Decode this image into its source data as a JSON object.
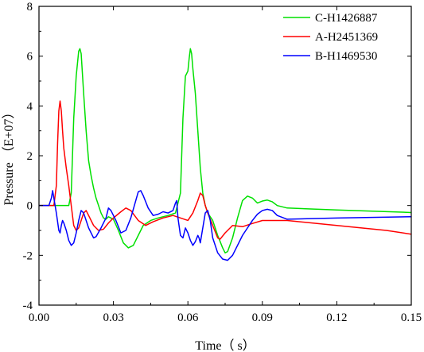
{
  "chart_data": {
    "type": "line",
    "xlabel": "Time（ s）",
    "ylabel": "Pressure （E+07）",
    "xlim": [
      0,
      0.15
    ],
    "ylim": [
      -4,
      8
    ],
    "xticks": [
      0.0,
      0.03,
      0.06,
      0.09,
      0.12,
      0.15
    ],
    "xtick_labels": [
      "0.00",
      "0.03",
      "0.06",
      "0.09",
      "0.12",
      "0.15"
    ],
    "yticks": [
      -4,
      -2,
      0,
      2,
      4,
      6,
      8
    ],
    "ytick_labels": [
      "-4",
      "-2",
      "0",
      "2",
      "4",
      "6",
      "8"
    ],
    "grid": false,
    "legend_position": "top-right",
    "series": [
      {
        "name": "C-H1426887",
        "color": "#00e000",
        "points": [
          [
            0.0,
            0.0
          ],
          [
            0.012,
            0.0
          ],
          [
            0.013,
            0.5
          ],
          [
            0.0135,
            2.0
          ],
          [
            0.014,
            3.5
          ],
          [
            0.015,
            5.2
          ],
          [
            0.016,
            6.2
          ],
          [
            0.0165,
            6.3
          ],
          [
            0.017,
            6.1
          ],
          [
            0.018,
            4.5
          ],
          [
            0.019,
            3.0
          ],
          [
            0.02,
            1.8
          ],
          [
            0.021,
            1.2
          ],
          [
            0.022,
            0.7
          ],
          [
            0.023,
            0.3
          ],
          [
            0.024,
            0.0
          ],
          [
            0.025,
            -0.3
          ],
          [
            0.026,
            -0.5
          ],
          [
            0.027,
            -0.55
          ],
          [
            0.028,
            -0.45
          ],
          [
            0.03,
            -0.55
          ],
          [
            0.032,
            -1.0
          ],
          [
            0.034,
            -1.5
          ],
          [
            0.036,
            -1.7
          ],
          [
            0.038,
            -1.6
          ],
          [
            0.04,
            -1.2
          ],
          [
            0.042,
            -0.8
          ],
          [
            0.045,
            -0.6
          ],
          [
            0.048,
            -0.5
          ],
          [
            0.052,
            -0.4
          ],
          [
            0.055,
            -0.3
          ],
          [
            0.057,
            0.5
          ],
          [
            0.058,
            3.5
          ],
          [
            0.059,
            5.2
          ],
          [
            0.06,
            5.4
          ],
          [
            0.0605,
            5.9
          ],
          [
            0.061,
            6.3
          ],
          [
            0.0615,
            6.1
          ],
          [
            0.062,
            5.5
          ],
          [
            0.063,
            4.5
          ],
          [
            0.064,
            3.0
          ],
          [
            0.065,
            1.5
          ],
          [
            0.066,
            0.5
          ],
          [
            0.067,
            0.0
          ],
          [
            0.068,
            -0.3
          ],
          [
            0.07,
            -0.6
          ],
          [
            0.072,
            -1.2
          ],
          [
            0.074,
            -1.7
          ],
          [
            0.075,
            -1.9
          ],
          [
            0.076,
            -1.85
          ],
          [
            0.078,
            -1.3
          ],
          [
            0.08,
            -0.5
          ],
          [
            0.082,
            0.2
          ],
          [
            0.084,
            0.38
          ],
          [
            0.086,
            0.3
          ],
          [
            0.088,
            0.1
          ],
          [
            0.09,
            0.18
          ],
          [
            0.092,
            0.22
          ],
          [
            0.094,
            0.15
          ],
          [
            0.096,
            0.0
          ],
          [
            0.1,
            -0.1
          ],
          [
            0.12,
            -0.18
          ],
          [
            0.15,
            -0.28
          ]
        ]
      },
      {
        "name": "A-H2451369",
        "color": "#ff0000",
        "points": [
          [
            0.0,
            0.0
          ],
          [
            0.006,
            0.0
          ],
          [
            0.007,
            0.8
          ],
          [
            0.0075,
            2.5
          ],
          [
            0.008,
            3.8
          ],
          [
            0.0085,
            4.2
          ],
          [
            0.009,
            3.8
          ],
          [
            0.0095,
            3.0
          ],
          [
            0.01,
            2.3
          ],
          [
            0.011,
            1.5
          ],
          [
            0.012,
            0.8
          ],
          [
            0.013,
            0.0
          ],
          [
            0.014,
            -0.8
          ],
          [
            0.015,
            -1.0
          ],
          [
            0.016,
            -0.9
          ],
          [
            0.017,
            -0.6
          ],
          [
            0.018,
            -0.3
          ],
          [
            0.019,
            -0.2
          ],
          [
            0.02,
            -0.4
          ],
          [
            0.022,
            -0.8
          ],
          [
            0.024,
            -1.0
          ],
          [
            0.026,
            -0.95
          ],
          [
            0.028,
            -0.7
          ],
          [
            0.03,
            -0.5
          ],
          [
            0.033,
            -0.25
          ],
          [
            0.035,
            -0.1
          ],
          [
            0.037,
            -0.2
          ],
          [
            0.04,
            -0.6
          ],
          [
            0.043,
            -0.8
          ],
          [
            0.046,
            -0.65
          ],
          [
            0.05,
            -0.5
          ],
          [
            0.054,
            -0.4
          ],
          [
            0.057,
            -0.5
          ],
          [
            0.06,
            -0.6
          ],
          [
            0.062,
            -0.3
          ],
          [
            0.064,
            0.2
          ],
          [
            0.065,
            0.5
          ],
          [
            0.066,
            0.4
          ],
          [
            0.067,
            0.0
          ],
          [
            0.068,
            -0.3
          ],
          [
            0.07,
            -0.8
          ],
          [
            0.072,
            -1.3
          ],
          [
            0.073,
            -1.35
          ],
          [
            0.075,
            -1.1
          ],
          [
            0.078,
            -0.8
          ],
          [
            0.082,
            -0.85
          ],
          [
            0.085,
            -0.75
          ],
          [
            0.09,
            -0.6
          ],
          [
            0.1,
            -0.6
          ],
          [
            0.11,
            -0.7
          ],
          [
            0.12,
            -0.8
          ],
          [
            0.13,
            -0.9
          ],
          [
            0.14,
            -1.0
          ],
          [
            0.15,
            -1.15
          ]
        ]
      },
      {
        "name": "B-H1469530",
        "color": "#0000ff",
        "points": [
          [
            0.0,
            0.0
          ],
          [
            0.004,
            0.0
          ],
          [
            0.005,
            0.3
          ],
          [
            0.0055,
            0.6
          ],
          [
            0.006,
            0.3
          ],
          [
            0.007,
            -0.3
          ],
          [
            0.008,
            -1.0
          ],
          [
            0.0085,
            -1.1
          ],
          [
            0.009,
            -0.8
          ],
          [
            0.0095,
            -0.6
          ],
          [
            0.01,
            -0.7
          ],
          [
            0.011,
            -1.0
          ],
          [
            0.012,
            -1.4
          ],
          [
            0.013,
            -1.6
          ],
          [
            0.014,
            -1.5
          ],
          [
            0.015,
            -1.1
          ],
          [
            0.016,
            -0.6
          ],
          [
            0.017,
            -0.2
          ],
          [
            0.018,
            -0.3
          ],
          [
            0.02,
            -0.9
          ],
          [
            0.022,
            -1.3
          ],
          [
            0.023,
            -1.25
          ],
          [
            0.025,
            -0.9
          ],
          [
            0.027,
            -0.5
          ],
          [
            0.028,
            -0.1
          ],
          [
            0.029,
            -0.2
          ],
          [
            0.031,
            -0.6
          ],
          [
            0.033,
            -1.1
          ],
          [
            0.035,
            -1.0
          ],
          [
            0.037,
            -0.5
          ],
          [
            0.039,
            0.2
          ],
          [
            0.04,
            0.55
          ],
          [
            0.041,
            0.6
          ],
          [
            0.042,
            0.4
          ],
          [
            0.044,
            -0.1
          ],
          [
            0.046,
            -0.4
          ],
          [
            0.048,
            -0.35
          ],
          [
            0.05,
            -0.25
          ],
          [
            0.052,
            -0.3
          ],
          [
            0.054,
            -0.2
          ],
          [
            0.055,
            0.1
          ],
          [
            0.0555,
            0.2
          ],
          [
            0.056,
            -0.5
          ],
          [
            0.057,
            -1.2
          ],
          [
            0.058,
            -1.3
          ],
          [
            0.059,
            -0.9
          ],
          [
            0.06,
            -1.1
          ],
          [
            0.061,
            -1.4
          ],
          [
            0.062,
            -1.6
          ],
          [
            0.063,
            -1.45
          ],
          [
            0.064,
            -1.2
          ],
          [
            0.0645,
            -1.3
          ],
          [
            0.065,
            -1.5
          ],
          [
            0.066,
            -0.9
          ],
          [
            0.067,
            -0.3
          ],
          [
            0.068,
            -0.2
          ],
          [
            0.069,
            -0.6
          ],
          [
            0.07,
            -1.3
          ],
          [
            0.072,
            -1.9
          ],
          [
            0.074,
            -2.15
          ],
          [
            0.076,
            -2.2
          ],
          [
            0.078,
            -2.0
          ],
          [
            0.08,
            -1.6
          ],
          [
            0.082,
            -1.2
          ],
          [
            0.084,
            -0.9
          ],
          [
            0.086,
            -0.6
          ],
          [
            0.088,
            -0.35
          ],
          [
            0.09,
            -0.2
          ],
          [
            0.092,
            -0.15
          ],
          [
            0.094,
            -0.2
          ],
          [
            0.096,
            -0.4
          ],
          [
            0.1,
            -0.55
          ],
          [
            0.12,
            -0.5
          ],
          [
            0.15,
            -0.45
          ]
        ]
      }
    ]
  }
}
